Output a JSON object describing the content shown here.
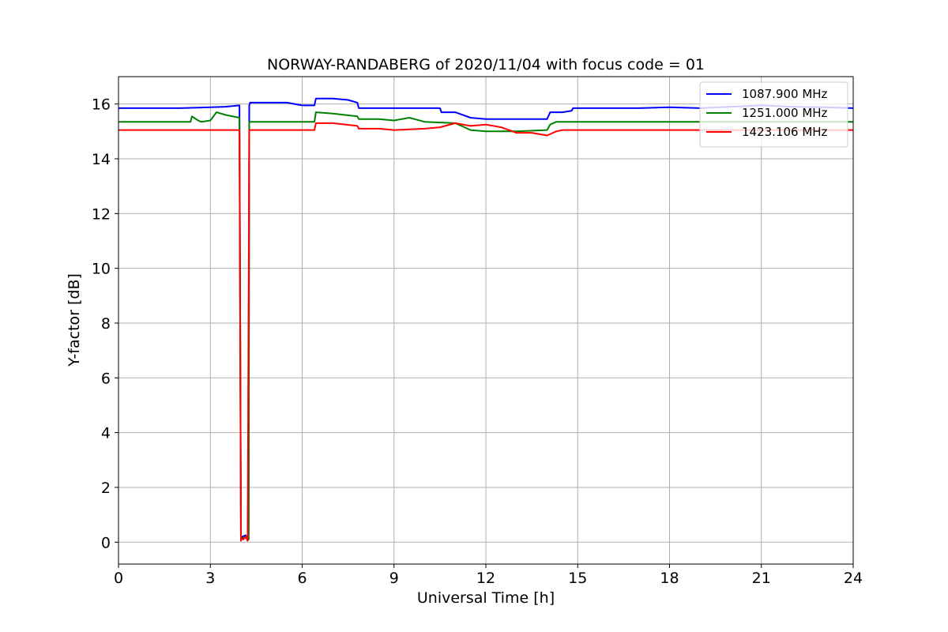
{
  "chart_data": {
    "type": "line",
    "title": "NORWAY-RANDABERG of 2020/11/04 with focus code = 01",
    "xlabel": "Universal Time [h]",
    "ylabel": "Y-factor [dB]",
    "xlim": [
      0,
      24
    ],
    "ylim": [
      -0.8,
      17
    ],
    "x_ticks": [
      0,
      3,
      6,
      9,
      12,
      15,
      18,
      21,
      24
    ],
    "y_ticks": [
      0,
      2,
      4,
      6,
      8,
      10,
      12,
      14,
      16
    ],
    "grid": true,
    "legend_position": "top-right",
    "series": [
      {
        "name": "1087.900 MHz",
        "color": "#0000ff",
        "x": [
          0,
          1.0,
          2.0,
          3.0,
          3.5,
          3.95,
          4.0,
          4.02,
          4.05,
          4.15,
          4.25,
          4.27,
          4.3,
          4.6,
          5.0,
          5.5,
          6.0,
          6.4,
          6.45,
          7.0,
          7.5,
          7.8,
          7.85,
          8.5,
          9.0,
          10.0,
          10.5,
          10.55,
          11.0,
          11.5,
          12.0,
          13.0,
          14.0,
          14.1,
          14.5,
          14.8,
          14.85,
          15.5,
          16.0,
          17.0,
          18.0,
          19.0,
          20.0,
          21.0,
          22.0,
          23.0,
          24.0
        ],
        "y": [
          15.85,
          15.85,
          15.85,
          15.88,
          15.9,
          15.95,
          0.15,
          0.1,
          0.2,
          0.25,
          0.1,
          15.95,
          16.05,
          16.05,
          16.05,
          16.05,
          15.95,
          15.95,
          16.2,
          16.2,
          16.15,
          16.05,
          15.85,
          15.85,
          15.85,
          15.85,
          15.85,
          15.7,
          15.7,
          15.5,
          15.45,
          15.45,
          15.45,
          15.7,
          15.7,
          15.75,
          15.85,
          15.85,
          15.85,
          15.85,
          15.88,
          15.85,
          15.9,
          15.95,
          15.9,
          15.88,
          15.85
        ]
      },
      {
        "name": "1251.000 MHz",
        "color": "#008000",
        "x": [
          0,
          2.0,
          2.35,
          2.4,
          2.6,
          2.7,
          3.0,
          3.2,
          3.5,
          3.95,
          4.0,
          4.05,
          4.15,
          4.25,
          4.27,
          4.5,
          5.0,
          6.0,
          6.4,
          6.45,
          7.0,
          7.8,
          7.85,
          8.5,
          9.0,
          9.5,
          10.0,
          11.0,
          11.5,
          12.0,
          13.0,
          14.0,
          14.1,
          14.3,
          15.0,
          15.7,
          16.0,
          17.0,
          18.0,
          20.0,
          22.0,
          24.0
        ],
        "y": [
          15.35,
          15.35,
          15.35,
          15.55,
          15.4,
          15.35,
          15.4,
          15.7,
          15.6,
          15.5,
          0.1,
          0.15,
          0.2,
          0.1,
          15.35,
          15.35,
          15.35,
          15.35,
          15.35,
          15.7,
          15.65,
          15.55,
          15.45,
          15.45,
          15.4,
          15.5,
          15.35,
          15.3,
          15.05,
          15.0,
          15.0,
          15.05,
          15.25,
          15.35,
          15.35,
          15.35,
          15.35,
          15.35,
          15.35,
          15.35,
          15.35,
          15.35
        ]
      },
      {
        "name": "1423.106 MHz",
        "color": "#ff0000",
        "x": [
          0,
          2.0,
          3.0,
          3.95,
          4.0,
          4.02,
          4.08,
          4.15,
          4.22,
          4.27,
          4.3,
          5.0,
          6.0,
          6.4,
          6.45,
          7.0,
          7.8,
          7.85,
          8.5,
          9.0,
          10.0,
          10.5,
          11.0,
          11.5,
          12.0,
          12.5,
          13.0,
          13.5,
          14.0,
          14.3,
          14.5,
          15.0,
          16.0,
          17.0,
          18.0,
          20.0,
          22.0,
          24.0
        ],
        "y": [
          15.05,
          15.05,
          15.05,
          15.05,
          0.05,
          0.15,
          0.1,
          0.2,
          0.05,
          15.05,
          15.05,
          15.05,
          15.05,
          15.05,
          15.3,
          15.3,
          15.2,
          15.1,
          15.1,
          15.05,
          15.1,
          15.15,
          15.3,
          15.2,
          15.25,
          15.15,
          14.95,
          14.95,
          14.85,
          15.0,
          15.05,
          15.05,
          15.05,
          15.05,
          15.05,
          15.05,
          15.05,
          15.05
        ]
      }
    ]
  }
}
